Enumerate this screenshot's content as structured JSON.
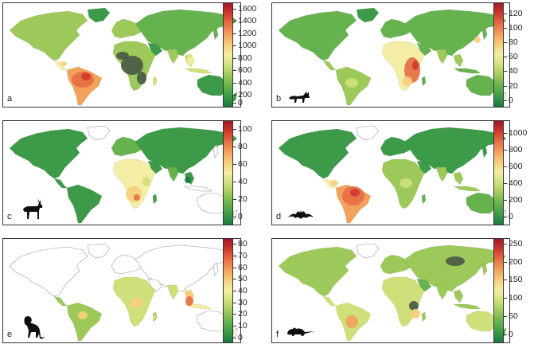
{
  "figure": {
    "panels": [
      {
        "letter": "a",
        "icon": "none",
        "legend": {
          "ticks": [
            "1600",
            "1400",
            "1200",
            "1000",
            "800",
            "600",
            "400",
            "200",
            "0"
          ],
          "min": 0,
          "max": 1700
        },
        "theme": "all-species-hotspots-amazon-congo"
      },
      {
        "letter": "b",
        "icon": "fox-icon",
        "legend": {
          "ticks": [
            "120",
            "100",
            "80",
            "60",
            "40",
            "20",
            "0"
          ],
          "min": -10,
          "max": 135
        },
        "theme": "carnivores-east-africa"
      },
      {
        "letter": "c",
        "icon": "antelope-icon",
        "legend": {
          "ticks": [
            "100",
            "80",
            "60",
            "40",
            "20",
            "0"
          ],
          "min": -10,
          "max": 110
        },
        "theme": "ungulates-southern-africa"
      },
      {
        "letter": "d",
        "icon": "bat-icon",
        "legend": {
          "ticks": [
            "1000",
            "800",
            "600",
            "400",
            "200",
            "0"
          ],
          "min": -100,
          "max": 1150
        },
        "theme": "bats-amazon"
      },
      {
        "letter": "e",
        "icon": "monkey-icon",
        "legend": {
          "ticks": [
            "80",
            "70",
            "60",
            "50",
            "40",
            "30",
            "20",
            "10",
            "0"
          ],
          "min": -5,
          "max": 85
        },
        "theme": "primates-tropics"
      },
      {
        "letter": "f",
        "icon": "rodent-icon",
        "legend": {
          "ticks": [
            "250",
            "200",
            "150",
            "100",
            "50",
            "0"
          ],
          "min": -25,
          "max": 265
        },
        "theme": "rodents-global"
      }
    ],
    "colors": {
      "scale": [
        "#1a7a40",
        "#3d9a48",
        "#66b24e",
        "#9cc95a",
        "#cfe07a",
        "#f3eda5",
        "#f7cf7c",
        "#f2a25c",
        "#e66f45",
        "#d03a2e",
        "#9e1727"
      ],
      "land_outline": "#9a9a9a",
      "dark_hotspot": "#4a5a45"
    }
  }
}
